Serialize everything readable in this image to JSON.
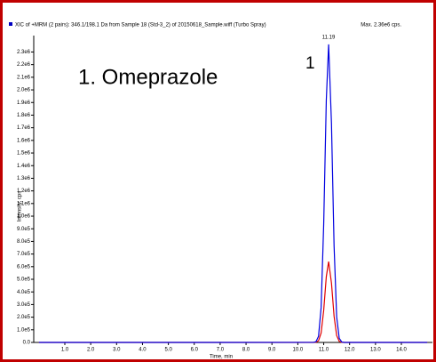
{
  "chart_data": {
    "type": "line",
    "header": "XIC of +MRM (2 pairs): 346.1/198.1 Da from Sample 18 (Std-3_2) of 20150618_Sample.wiff (Turbo Spray)",
    "max_label": "Max. 2.36e6 cps.",
    "annotation": "1. Omeprazole",
    "peak_number": "1",
    "peak_time_label": "11.19",
    "x_label": "Time, min",
    "y_label": "Intensity, cps",
    "x": [
      0,
      10.6,
      10.7,
      10.8,
      10.9,
      11.0,
      11.1,
      11.19,
      11.3,
      11.4,
      11.5,
      11.6,
      11.7,
      11.8,
      15.0
    ],
    "series": [
      {
        "color": "#0000e0",
        "values": [
          0,
          300,
          5200,
          48800,
          276000,
          939000,
          1919000,
          2360000,
          1733000,
          767000,
          203000,
          32300,
          3100,
          0,
          0
        ]
      },
      {
        "color": "#e00000",
        "values": [
          0,
          0,
          1400,
          13200,
          74900,
          254700,
          520300,
          640000,
          469800,
          208000,
          55000,
          8800,
          800,
          0,
          0
        ]
      }
    ],
    "xlim": [
      -0.2,
      15.2
    ],
    "ylim": [
      0,
      2430000
    ],
    "xticks": [
      {
        "value": 1,
        "label": "1.0"
      },
      {
        "value": 2,
        "label": "2.0"
      },
      {
        "value": 3,
        "label": "3.0"
      },
      {
        "value": 4,
        "label": "4.0"
      },
      {
        "value": 5,
        "label": "5.0"
      },
      {
        "value": 6,
        "label": "6.0"
      },
      {
        "value": 7,
        "label": "7.0"
      },
      {
        "value": 8,
        "label": "8.0"
      },
      {
        "value": 9,
        "label": "9.0"
      },
      {
        "value": 10,
        "label": "10.0"
      },
      {
        "value": 11,
        "label": "11.0"
      },
      {
        "value": 12,
        "label": "12.0"
      },
      {
        "value": 13,
        "label": "13.0"
      },
      {
        "value": 14,
        "label": "14.0"
      }
    ],
    "yticks": [
      {
        "value": 0,
        "label": "0.0"
      },
      {
        "value": 100000,
        "label": "1.0e5"
      },
      {
        "value": 200000,
        "label": "2.0e5"
      },
      {
        "value": 300000,
        "label": "3.0e5"
      },
      {
        "value": 400000,
        "label": "4.0e5"
      },
      {
        "value": 500000,
        "label": "5.0e5"
      },
      {
        "value": 600000,
        "label": "6.0e5"
      },
      {
        "value": 700000,
        "label": "7.0e5"
      },
      {
        "value": 800000,
        "label": "8.0e5"
      },
      {
        "value": 900000,
        "label": "9.0e5"
      },
      {
        "value": 1000000,
        "label": "1.0e6"
      },
      {
        "value": 1100000,
        "label": "1.1e6"
      },
      {
        "value": 1200000,
        "label": "1.2e6"
      },
      {
        "value": 1300000,
        "label": "1.3e6"
      },
      {
        "value": 1400000,
        "label": "1.4e6"
      },
      {
        "value": 1500000,
        "label": "1.5e6"
      },
      {
        "value": 1600000,
        "label": "1.6e6"
      },
      {
        "value": 1700000,
        "label": "1.7e6"
      },
      {
        "value": 1800000,
        "label": "1.8e6"
      },
      {
        "value": 1900000,
        "label": "1.9e6"
      },
      {
        "value": 2000000,
        "label": "2.0e6"
      },
      {
        "value": 2100000,
        "label": "2.1e6"
      },
      {
        "value": 2200000,
        "label": "2.2e6"
      },
      {
        "value": 2300000,
        "label": "2.3e6"
      }
    ],
    "grid": false
  }
}
